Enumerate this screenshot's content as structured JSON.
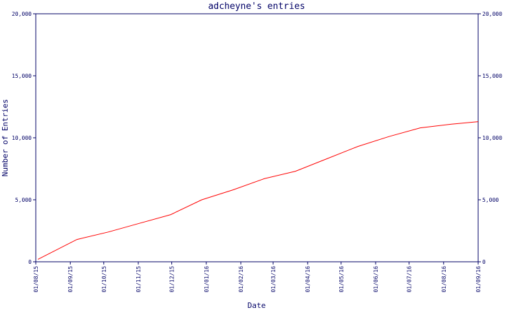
{
  "chart_data": {
    "type": "line",
    "title": "adcheyne's entries",
    "x_label": "Date",
    "y_label": "Number of Entries",
    "x": [
      "2015-08-03",
      "2015-09-07",
      "2015-10-05",
      "2015-11-02",
      "2015-11-30",
      "2015-12-28",
      "2016-01-25",
      "2016-02-22",
      "2016-03-21",
      "2016-04-18",
      "2016-05-16",
      "2016-06-13",
      "2016-07-11",
      "2016-08-08",
      "2016-09-01"
    ],
    "series": [
      {
        "name": "Entries",
        "color": "#ff0000",
        "values": [
          200,
          1800,
          2400,
          3100,
          3800,
          5000,
          5800,
          6700,
          7300,
          8300,
          9300,
          10100,
          10800,
          11100,
          11300
        ]
      }
    ],
    "xlim": [
      "2015-08-01",
      "2016-09-01"
    ],
    "xticks": [
      {
        "value": "2015-08-01",
        "label": "01/08/15"
      },
      {
        "value": "2015-09-01",
        "label": "01/09/15"
      },
      {
        "value": "2015-10-01",
        "label": "01/10/15"
      },
      {
        "value": "2015-11-01",
        "label": "01/11/15"
      },
      {
        "value": "2015-12-01",
        "label": "01/12/15"
      },
      {
        "value": "2016-01-01",
        "label": "01/01/16"
      },
      {
        "value": "2016-02-01",
        "label": "01/02/16"
      },
      {
        "value": "2016-03-01",
        "label": "01/03/16"
      },
      {
        "value": "2016-04-01",
        "label": "01/04/16"
      },
      {
        "value": "2016-05-01",
        "label": "01/05/16"
      },
      {
        "value": "2016-06-01",
        "label": "01/06/16"
      },
      {
        "value": "2016-07-01",
        "label": "01/07/16"
      },
      {
        "value": "2016-08-01",
        "label": "01/08/16"
      },
      {
        "value": "2016-09-01",
        "label": "01/09/16"
      }
    ],
    "ylim": [
      0,
      20000
    ],
    "yticks": [
      0,
      {
        "value": 5000,
        "label": "5,000"
      },
      {
        "value": 10000,
        "label": "10,000"
      },
      {
        "value": 15000,
        "label": "15,000"
      },
      {
        "value": 20000,
        "label": "20,000"
      }
    ],
    "y2lim": [
      0,
      20000
    ],
    "y2ticks": [
      0,
      {
        "value": 5000,
        "label": "5,000"
      },
      {
        "value": 10000,
        "label": "10,000"
      },
      {
        "value": 15000,
        "label": "15,000"
      },
      {
        "value": 20000,
        "label": "20,000"
      }
    ]
  }
}
